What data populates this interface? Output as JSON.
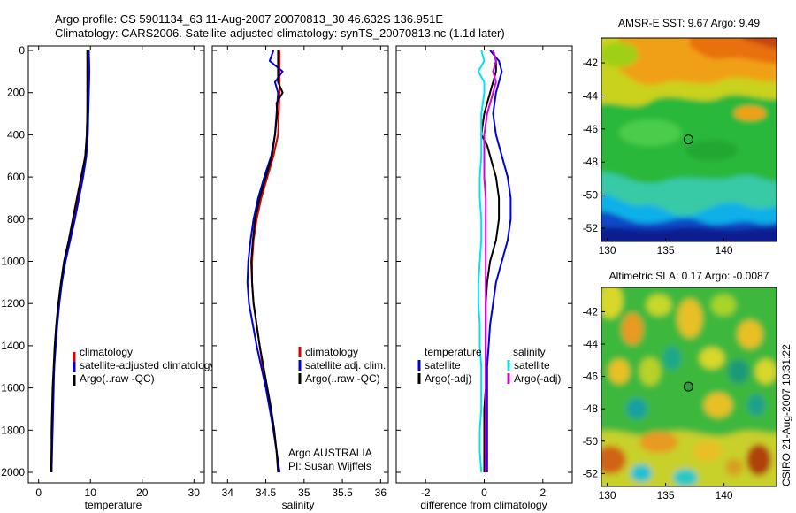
{
  "header": {
    "line1": "Argo profile: CS 5901134_63 11-Aug-2007 20070813_30 46.632S 136.951E",
    "line2": "Climatology: CARS2006. Satellite-adjusted climatology: synTS_20070813.nc (1.1d later)"
  },
  "footer": {
    "institution_stamp": "CSIRO 21-Aug-2007 10:31:22",
    "annotation_line1": "Argo AUSTRALIA",
    "annotation_line2": "PI: Susan Wijffels"
  },
  "colors": {
    "climatology": "#dd0000",
    "satellite": "#0000dd",
    "argo": "#000000",
    "salinity_satellite": "#00e5ee",
    "salinity_argo": "#dd00dd"
  },
  "chart_data": [
    {
      "id": "temperature",
      "type": "line",
      "xlabel": "temperature",
      "ylabel": "",
      "xlim": [
        -2,
        32
      ],
      "ylim": [
        2050,
        0
      ],
      "xticks": [
        0,
        10,
        20,
        30
      ],
      "yticks": [
        0,
        200,
        400,
        600,
        800,
        1000,
        1200,
        1400,
        1600,
        1800,
        2000
      ],
      "legend": [
        "climatology",
        "satellite-adjusted climatology",
        "Argo(..raw -QC)"
      ],
      "series": [
        {
          "name": "climatology",
          "color": "#dd0000",
          "depth": [
            0,
            100,
            200,
            300,
            400,
            500,
            600,
            700,
            800,
            900,
            1000,
            1100,
            1200,
            1300,
            1400,
            1500,
            1600,
            1700,
            1800,
            1900,
            2000
          ],
          "values": [
            9.5,
            9.5,
            9.5,
            9.4,
            9.3,
            9.0,
            8.4,
            7.6,
            6.8,
            5.9,
            5.0,
            4.4,
            3.9,
            3.5,
            3.2,
            3.0,
            2.8,
            2.7,
            2.6,
            2.5,
            2.5
          ]
        },
        {
          "name": "satellite-adjusted climatology",
          "color": "#0000dd",
          "depth": [
            0,
            100,
            200,
            300,
            400,
            500,
            600,
            700,
            800,
            900,
            1000,
            1100,
            1200,
            1300,
            1400,
            1500,
            1600,
            1700,
            1800,
            1900,
            2000
          ],
          "values": [
            9.7,
            9.8,
            9.7,
            9.6,
            9.5,
            9.2,
            8.6,
            7.8,
            7.0,
            6.1,
            5.2,
            4.5,
            4.0,
            3.6,
            3.3,
            3.0,
            2.9,
            2.8,
            2.7,
            2.6,
            2.5
          ]
        },
        {
          "name": "Argo(..raw -QC)",
          "color": "#000000",
          "depth": [
            0,
            100,
            200,
            300,
            400,
            500,
            600,
            700,
            800,
            900,
            1000,
            1100,
            1200,
            1300,
            1400,
            1500,
            1600,
            1700,
            1800,
            1900,
            2000
          ],
          "values": [
            9.4,
            9.4,
            9.4,
            9.4,
            9.3,
            9.0,
            8.2,
            7.4,
            6.6,
            5.8,
            4.9,
            4.3,
            3.8,
            3.4,
            3.1,
            2.9,
            2.7,
            2.6,
            2.5,
            2.5,
            2.4
          ]
        }
      ]
    },
    {
      "id": "salinity",
      "type": "line",
      "xlabel": "salinity",
      "ylabel": "",
      "xlim": [
        33.8,
        36.1
      ],
      "ylim": [
        2050,
        0
      ],
      "xticks": [
        34,
        34.5,
        35,
        35.5,
        36
      ],
      "yticks": [
        0,
        200,
        400,
        600,
        800,
        1000,
        1200,
        1400,
        1600,
        1800,
        2000
      ],
      "legend": [
        "climatology",
        "satellite adj. clim.",
        "Argo(..raw -QC)"
      ],
      "series": [
        {
          "name": "climatology",
          "color": "#dd0000",
          "depth": [
            0,
            100,
            200,
            300,
            400,
            500,
            600,
            700,
            800,
            900,
            1000,
            1100,
            1200,
            1300,
            1400,
            1500,
            1600,
            1700,
            1800,
            1900,
            2000
          ],
          "values": [
            34.68,
            34.68,
            34.68,
            34.67,
            34.66,
            34.6,
            34.52,
            34.44,
            34.38,
            34.34,
            34.32,
            34.32,
            34.34,
            34.38,
            34.42,
            34.46,
            34.51,
            34.56,
            34.6,
            34.64,
            34.68
          ]
        },
        {
          "name": "satellite adj. clim.",
          "color": "#0000dd",
          "depth": [
            0,
            50,
            100,
            150,
            200,
            300,
            400,
            500,
            600,
            700,
            800,
            900,
            1000,
            1100,
            1200,
            1300,
            1400,
            1500,
            1600,
            1700,
            1800,
            1900,
            2000
          ],
          "values": [
            34.6,
            34.55,
            34.72,
            34.62,
            34.66,
            34.64,
            34.62,
            34.57,
            34.48,
            34.4,
            34.34,
            34.3,
            34.27,
            34.26,
            34.28,
            34.33,
            34.38,
            34.44,
            34.5,
            34.55,
            34.6,
            34.64,
            34.68
          ]
        },
        {
          "name": "Argo(..raw -QC)",
          "color": "#000000",
          "depth": [
            0,
            100,
            150,
            200,
            250,
            300,
            400,
            500,
            600,
            700,
            800,
            900,
            1000,
            1100,
            1200,
            1300,
            1400,
            1500,
            1600,
            1700,
            1800,
            1900,
            2000
          ],
          "values": [
            34.66,
            34.66,
            34.66,
            34.72,
            34.64,
            34.65,
            34.62,
            34.58,
            34.5,
            34.42,
            34.36,
            34.33,
            34.31,
            34.32,
            34.34,
            34.38,
            34.42,
            34.47,
            34.52,
            34.57,
            34.61,
            34.64,
            34.66
          ]
        }
      ]
    },
    {
      "id": "difference",
      "type": "line",
      "xlabel": "difference from climatology",
      "ylabel": "",
      "xlim": [
        -3,
        3
      ],
      "ylim": [
        2050,
        0
      ],
      "xticks": [
        -2,
        0,
        2
      ],
      "yticks": [
        0,
        200,
        400,
        600,
        800,
        1000,
        1200,
        1400,
        1600,
        1800,
        2000
      ],
      "legend_left_title": "temperature",
      "legend_right_title": "salinity",
      "legend": [
        "satellite",
        "Argo(-adj)",
        "satellite",
        "Argo(-adj)"
      ],
      "series": [
        {
          "name": "satellite",
          "group": "temperature",
          "color": "#0000dd",
          "depth": [
            0,
            50,
            100,
            150,
            200,
            300,
            400,
            500,
            600,
            700,
            800,
            900,
            1000,
            1100,
            1200,
            1300,
            1400,
            1500,
            1600,
            1700,
            1800,
            1900,
            2000
          ],
          "values": [
            0.2,
            0.5,
            0.6,
            0.5,
            0.4,
            0.3,
            0.4,
            0.6,
            0.8,
            0.9,
            0.9,
            0.8,
            0.6,
            0.4,
            0.3,
            0.2,
            0.15,
            0.1,
            0.1,
            0.1,
            0.1,
            0.1,
            0.1
          ]
        },
        {
          "name": "Argo(-adj)",
          "group": "temperature",
          "color": "#000000",
          "depth": [
            0,
            50,
            100,
            150,
            200,
            300,
            400,
            450,
            500,
            600,
            700,
            800,
            900,
            1000,
            1100,
            1200,
            1300,
            1400,
            1500,
            1600,
            1700,
            1800,
            1900,
            2000
          ],
          "values": [
            0.3,
            0.4,
            0.4,
            0.3,
            0.2,
            0.0,
            -0.1,
            0.1,
            0.2,
            0.4,
            0.5,
            0.5,
            0.4,
            0.2,
            0.1,
            0.05,
            0.05,
            0.05,
            0.05,
            0.05,
            0.0,
            0.0,
            0.0,
            0.0
          ]
        },
        {
          "name": "satellite",
          "group": "salinity",
          "color": "#00e5ee",
          "depth": [
            0,
            50,
            100,
            150,
            200,
            300,
            400,
            500,
            600,
            700,
            800,
            900,
            1000,
            1100,
            1200,
            1300,
            1400,
            1500,
            1600,
            1700,
            1800,
            1900,
            2000
          ],
          "values": [
            -0.1,
            0.0,
            -0.2,
            0.0,
            0.0,
            -0.1,
            -0.1,
            -0.1,
            -0.15,
            -0.15,
            -0.1,
            -0.1,
            -0.15,
            -0.2,
            -0.2,
            -0.15,
            -0.15,
            -0.1,
            -0.1,
            -0.1,
            -0.15,
            -0.15,
            -0.1
          ]
        },
        {
          "name": "Argo(-adj)",
          "group": "salinity",
          "color": "#dd00dd",
          "depth": [
            0,
            50,
            100,
            150,
            200,
            300,
            400,
            500,
            600,
            700,
            800,
            900,
            1000,
            1100,
            1200,
            1300,
            1400,
            1500,
            1600,
            1700,
            1800,
            1900,
            2000
          ],
          "values": [
            0.3,
            0.4,
            0.3,
            0.4,
            0.3,
            0.1,
            0.0,
            0.0,
            0.0,
            0.05,
            0.05,
            0.05,
            0.05,
            0.05,
            0.05,
            0.05,
            0.05,
            0.05,
            0.05,
            0.05,
            0.05,
            0.05,
            0.05
          ]
        }
      ]
    },
    {
      "id": "sst_map",
      "type": "heatmap",
      "title": "AMSR-E SST: 9.67 Argo: 9.49",
      "xlim": [
        129.5,
        144.5
      ],
      "ylim": [
        -52.8,
        -40.5
      ],
      "xticks": [
        130,
        135,
        140
      ],
      "yticks": [
        -42,
        -44,
        -46,
        -48,
        -50,
        -52
      ],
      "profile_marker": {
        "lon": 136.951,
        "lat": -46.632
      }
    },
    {
      "id": "sla_map",
      "type": "heatmap",
      "title": "Altimetric SLA: 0.17 Argo: -0.0087",
      "xlim": [
        129.5,
        144.5
      ],
      "ylim": [
        -52.8,
        -40.5
      ],
      "xticks": [
        130,
        135,
        140
      ],
      "yticks": [
        -42,
        -44,
        -46,
        -48,
        -50,
        -52
      ],
      "profile_marker": {
        "lon": 136.951,
        "lat": -46.632
      }
    }
  ]
}
